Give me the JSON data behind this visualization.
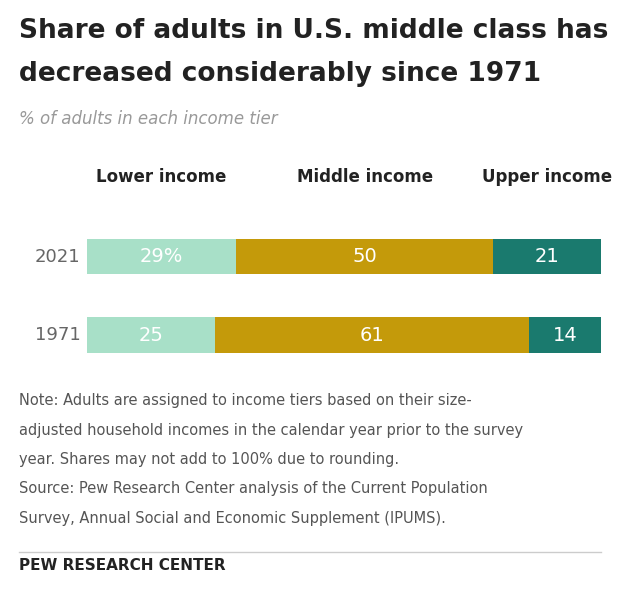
{
  "title_line1": "Share of adults in U.S. middle class has",
  "title_line2": "decreased considerably since 1971",
  "subtitle": "% of adults in each income tier",
  "years": [
    "2021",
    "1971"
  ],
  "categories": [
    "Lower income",
    "Middle income",
    "Upper income"
  ],
  "values": {
    "2021": [
      29,
      50,
      21
    ],
    "1971": [
      25,
      61,
      14
    ]
  },
  "labels": {
    "2021": [
      "29%",
      "50",
      "21"
    ],
    "1971": [
      "25",
      "61",
      "14"
    ]
  },
  "colors": [
    "#a8e0c8",
    "#c49a0a",
    "#1a7a6e"
  ],
  "background_color": "#ffffff",
  "title_fontsize": 19,
  "subtitle_fontsize": 12,
  "label_fontsize": 14,
  "header_fontsize": 12,
  "year_fontsize": 13,
  "note_line1": "Note: Adults are assigned to income tiers based on their size-",
  "note_line2": "adjusted household incomes in the calendar year prior to the survey",
  "note_line3": "year. Shares may not add to 100% due to rounding.",
  "note_line4": "Source: Pew Research Center analysis of the Current Population",
  "note_line5": "Survey, Annual Social and Economic Supplement (IPUMS).",
  "footer_text": "PEW RESEARCH CENTER",
  "note_fontsize": 10.5,
  "footer_fontsize": 11,
  "text_color_dark": "#222222",
  "text_color_gray": "#888888",
  "text_color_note": "#555555"
}
